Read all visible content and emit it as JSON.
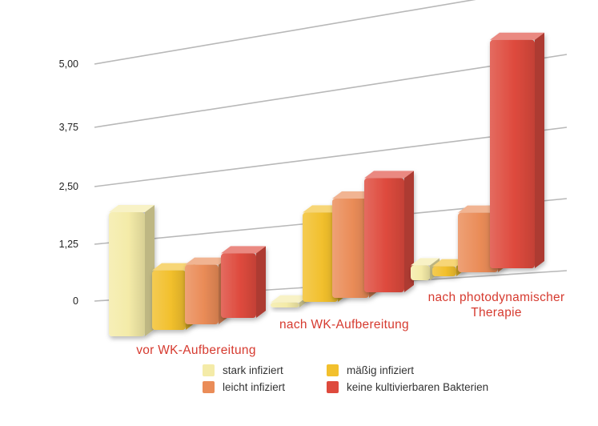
{
  "chart_data": {
    "type": "bar",
    "style": "3d-perspective",
    "categories": [
      "vor WK-Aufbereitung",
      "nach WK-Aufbereitung",
      "nach photodynamischer Therapie"
    ],
    "series": [
      {
        "name": "stark infiziert",
        "color": "#F4EBA8",
        "values": [
          2.5,
          0.1,
          0.3
        ]
      },
      {
        "name": "mäßig infiziert",
        "color": "#F2C02D",
        "values": [
          1.2,
          1.8,
          0.2
        ]
      },
      {
        "name": "leicht infiziert",
        "color": "#EA8C58",
        "values": [
          1.2,
          2.0,
          1.2
        ]
      },
      {
        "name": "keine kultivierbaren Bakterien",
        "color": "#DE4A3D",
        "values": [
          1.3,
          2.3,
          4.6
        ]
      }
    ],
    "y_ticks": [
      "0",
      "1,25",
      "2,50",
      "3,75",
      "5,00"
    ],
    "ylim": [
      0,
      5
    ],
    "title": "",
    "xlabel": "",
    "ylabel": "",
    "grid": true,
    "legend_position": "bottom"
  }
}
